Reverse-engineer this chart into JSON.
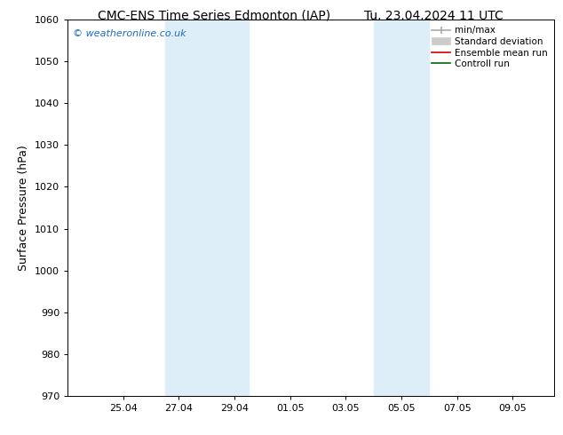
{
  "title_left": "CMC-ENS Time Series Edmonton (IAP)",
  "title_right": "Tu. 23.04.2024 11 UTC",
  "ylabel": "Surface Pressure (hPa)",
  "ylim": [
    970,
    1060
  ],
  "yticks": [
    970,
    980,
    990,
    1000,
    1010,
    1020,
    1030,
    1040,
    1050,
    1060
  ],
  "x_tick_labels": [
    "25.04",
    "27.04",
    "29.04",
    "01.05",
    "03.05",
    "05.05",
    "07.05",
    "09.05"
  ],
  "x_tick_positions": [
    2,
    4,
    6,
    8,
    10,
    12,
    14,
    16
  ],
  "xlim": [
    0,
    17.5
  ],
  "shaded_bands": [
    {
      "x_start": 3.5,
      "x_end": 6.5,
      "color": "#ddeef8"
    },
    {
      "x_start": 11.0,
      "x_end": 13.0,
      "color": "#ddeef8"
    }
  ],
  "watermark_text": "© weatheronline.co.uk",
  "watermark_color": "#1a6bbf",
  "background_color": "#ffffff",
  "legend_items": [
    {
      "label": "min/max",
      "color": "#aaaaaa",
      "style": "errorbar"
    },
    {
      "label": "Standard deviation",
      "color": "#cccccc",
      "style": "bar"
    },
    {
      "label": "Ensemble mean run",
      "color": "#cc0000",
      "style": "line"
    },
    {
      "label": "Controll run",
      "color": "#006600",
      "style": "line"
    }
  ],
  "title_fontsize": 10,
  "axis_fontsize": 9,
  "tick_fontsize": 8
}
